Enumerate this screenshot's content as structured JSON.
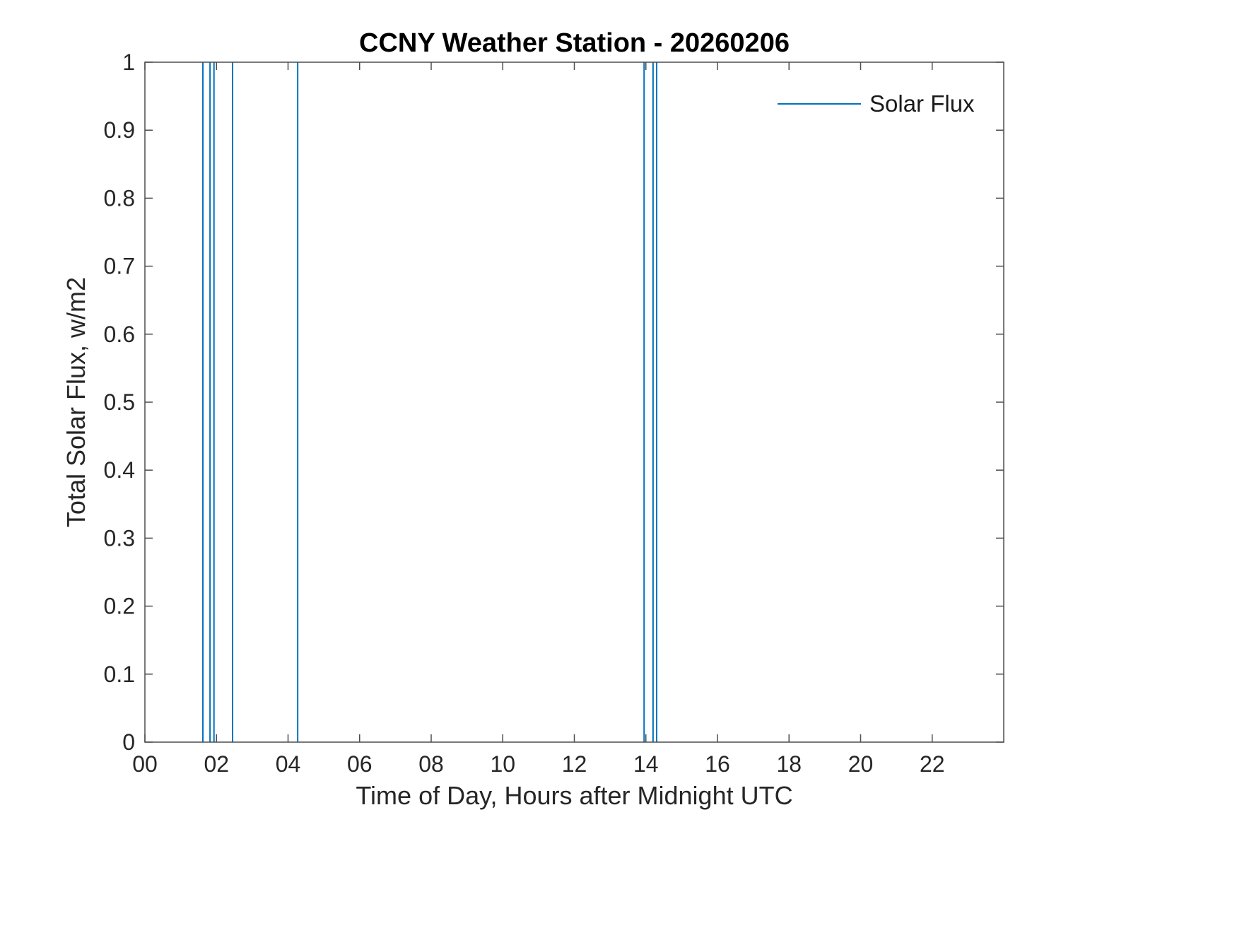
{
  "window": {
    "background": "#ffffff"
  },
  "chart_data": {
    "type": "line",
    "title": "CCNY Weather Station - 20260206",
    "xlabel": "Time of Day, Hours after Midnight UTC",
    "ylabel": "Total Solar Flux, w/m2",
    "xlim": [
      0,
      24
    ],
    "ylim": [
      0,
      1
    ],
    "grid": false,
    "xticks": [
      0,
      2,
      4,
      6,
      8,
      10,
      12,
      14,
      16,
      18,
      20,
      22
    ],
    "xtick_labels": [
      "00",
      "02",
      "04",
      "06",
      "08",
      "10",
      "12",
      "14",
      "16",
      "18",
      "20",
      "22"
    ],
    "yticks": [
      0,
      0.1,
      0.2,
      0.3,
      0.4,
      0.5,
      0.6,
      0.7,
      0.8,
      0.9,
      1
    ],
    "ytick_labels": [
      "0",
      "0.1",
      "0.2",
      "0.3",
      "0.4",
      "0.5",
      "0.6",
      "0.7",
      "0.8",
      "0.9",
      "1"
    ],
    "legend": {
      "position": "top-right",
      "entries": [
        {
          "label": "Solar Flux",
          "color": "#0072BD"
        }
      ]
    },
    "series": [
      {
        "name": "Solar Flux",
        "color": "#0072BD",
        "style": "vertical-spikes-full-height",
        "spike_x_hours": [
          1.62,
          1.82,
          1.93,
          2.45,
          4.27,
          13.95,
          14.2,
          14.3
        ],
        "spike_y_span": [
          0,
          1
        ]
      }
    ],
    "colors": {
      "line": "#0072BD",
      "axis": "#4d4d4d",
      "tick_text": "#262626",
      "title_text": "#000000"
    }
  }
}
